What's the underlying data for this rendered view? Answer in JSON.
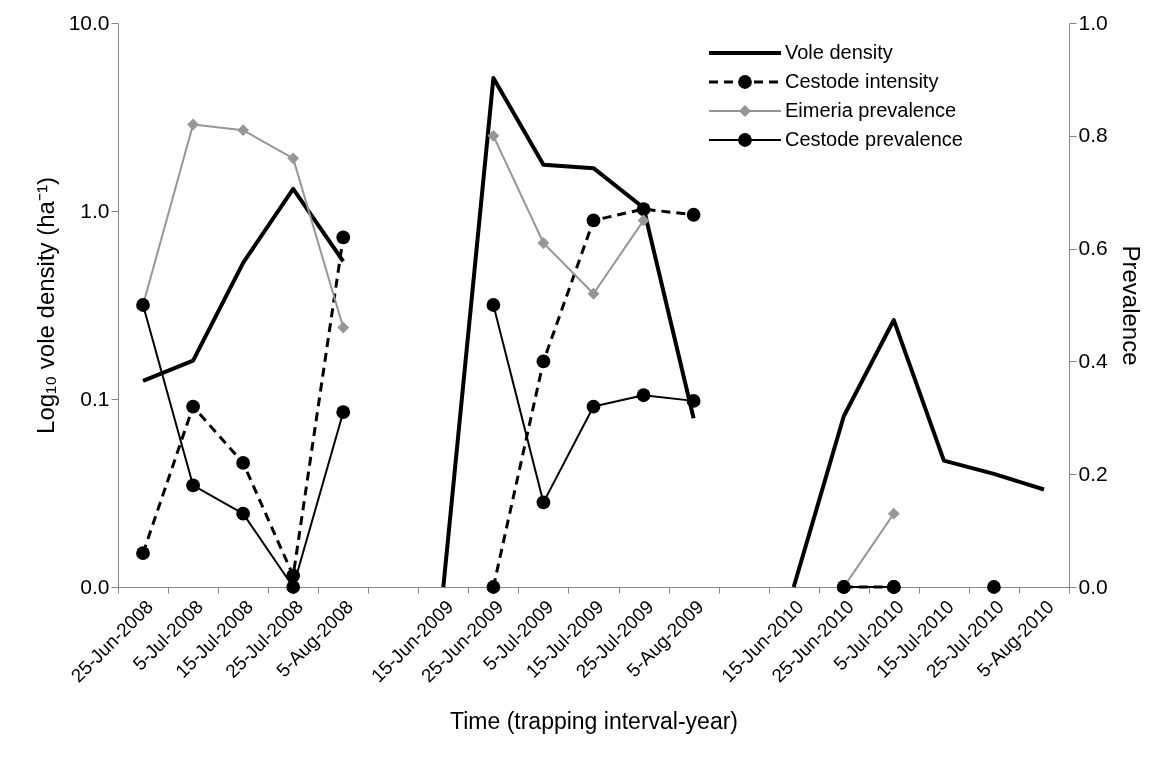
{
  "chart_data": {
    "type": "line",
    "xlabel": "Time (trapping interval-year)",
    "ylabel": "Log₁₀ vole density (ha⁻¹)",
    "y2label": "Prevalence",
    "categories": [
      "25-Jun-2008",
      "5-Jul-2008",
      "15-Jul-2008",
      "25-Jul-2008",
      "5-Aug-2008",
      null,
      "15-Jun-2009",
      "25-Jun-2009",
      "5-Jul-2009",
      "15-Jul-2009",
      "25-Jul-2009",
      "5-Aug-2009",
      null,
      "15-Jun-2010",
      "25-Jun-2010",
      "5-Jul-2010",
      "15-Jul-2010",
      "25-Jul-2010",
      "5-Aug-2010"
    ],
    "log": "y",
    "ylim": [
      0.01,
      10
    ],
    "yticks": [
      {
        "value": 0.01,
        "label": "0.0"
      },
      {
        "value": 0.1,
        "label": "0.1"
      },
      {
        "value": 1,
        "label": "1.0"
      },
      {
        "value": 10,
        "label": "10.0"
      }
    ],
    "y2lim": [
      0,
      1
    ],
    "y2ticks": [
      {
        "value": 0,
        "label": "0.0"
      },
      {
        "value": 0.2,
        "label": "0.2"
      },
      {
        "value": 0.4,
        "label": "0.4"
      },
      {
        "value": 0.6,
        "label": "0.6"
      },
      {
        "value": 0.8,
        "label": "0.8"
      },
      {
        "value": 1,
        "label": "1.0"
      }
    ],
    "grid": false,
    "legend": "top right",
    "series": [
      {
        "name": "Vole density",
        "color": "#000000",
        "marker": "none",
        "line_style": "solid",
        "values": [
          0.125,
          0.16,
          0.53,
          1.31,
          0.54,
          null,
          0.01,
          5.1,
          1.76,
          1.69,
          1.04,
          0.079,
          null,
          0.01,
          0.081,
          0.263,
          0.047,
          0.04,
          0.033
        ]
      },
      {
        "name": "Cestode intensity",
        "color": "#000000",
        "marker": "circle",
        "line_style": "dashed",
        "axis": "y2",
        "values": [
          0.06,
          0.32,
          0.22,
          0.02,
          0.62,
          null,
          null,
          0,
          0.4,
          0.65,
          0.67,
          0.66,
          null,
          null,
          0,
          0,
          null,
          null,
          null
        ]
      },
      {
        "name": "Eimeria prevalence",
        "color": "#969696",
        "marker": "diamond",
        "line_style": "solid",
        "axis": "y2",
        "values": [
          0.5,
          0.82,
          0.81,
          0.76,
          0.46,
          null,
          null,
          0.8,
          0.61,
          0.52,
          0.65,
          null,
          null,
          null,
          0,
          0.13,
          null,
          null,
          null
        ]
      },
      {
        "name": "Cestode prevalence",
        "color": "#000000",
        "marker": "circle",
        "line_style": "solid",
        "axis": "y2",
        "values": [
          0.5,
          0.18,
          0.13,
          0,
          0.31,
          null,
          null,
          0.5,
          0.15,
          0.32,
          0.34,
          0.33,
          null,
          null,
          0,
          0,
          null,
          0,
          null
        ]
      }
    ]
  }
}
